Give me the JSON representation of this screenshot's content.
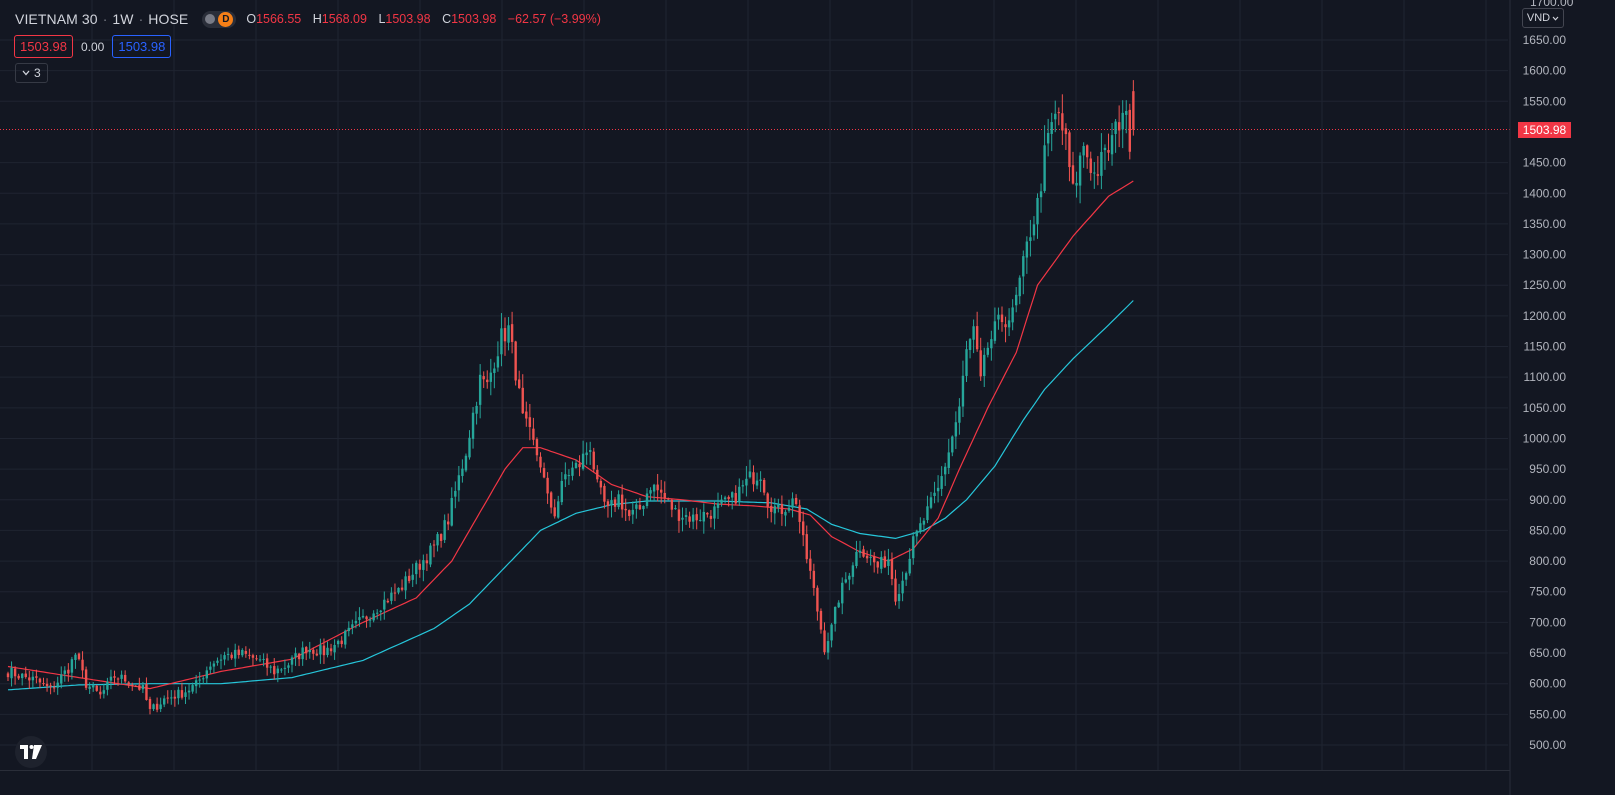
{
  "header": {
    "symbol": "VIETNAM 30",
    "interval": "1W",
    "exchange": "HOSE",
    "badge": "D",
    "ohlc": {
      "open_label": "O",
      "open": "1566.55",
      "high_label": "H",
      "high": "1568.09",
      "low_label": "L",
      "low": "1503.98",
      "close_label": "C",
      "close": "1503.98",
      "change": "−62.57 (−3.99%)"
    }
  },
  "quote": {
    "sell": "1503.98",
    "spread": "0.00",
    "buy": "1503.98"
  },
  "indicators_button": {
    "count": "3"
  },
  "price_scale": {
    "currency": "VND",
    "last_price": "1503.98",
    "top_partial_label": "1700.00",
    "ticks": [
      "1650.00",
      "1600.00",
      "1550.00",
      "1450.00",
      "1400.00",
      "1350.00",
      "1300.00",
      "1250.00",
      "1200.00",
      "1150.00",
      "1100.00",
      "1050.00",
      "1000.00",
      "950.00",
      "900.00",
      "850.00",
      "800.00",
      "750.00",
      "700.00",
      "650.00",
      "600.00",
      "550.00",
      "500.00"
    ]
  },
  "colors": {
    "background": "#131722",
    "up": "#26a69a",
    "down": "#ef5350",
    "ma_fast": "#f23645",
    "ma_slow": "#26c6da",
    "grid": "#1f2431"
  },
  "chart_data": {
    "type": "candlestick",
    "title": "",
    "ylim": [
      490,
      1705
    ],
    "last_price": 1503.98,
    "anchors_close": [
      [
        0,
        620
      ],
      [
        4,
        612
      ],
      [
        8,
        605
      ],
      [
        12,
        590
      ],
      [
        17,
        625
      ],
      [
        19,
        648
      ],
      [
        22,
        600
      ],
      [
        26,
        580
      ],
      [
        30,
        612
      ],
      [
        34,
        605
      ],
      [
        38,
        590
      ],
      [
        40,
        555
      ],
      [
        44,
        575
      ],
      [
        49,
        585
      ],
      [
        53,
        598
      ],
      [
        57,
        632
      ],
      [
        61,
        646
      ],
      [
        66,
        648
      ],
      [
        70,
        640
      ],
      [
        75,
        620
      ],
      [
        79,
        632
      ],
      [
        84,
        658
      ],
      [
        89,
        652
      ],
      [
        94,
        672
      ],
      [
        99,
        700
      ],
      [
        105,
        730
      ],
      [
        110,
        752
      ],
      [
        116,
        795
      ],
      [
        120,
        822
      ],
      [
        124,
        868
      ],
      [
        127,
        935
      ],
      [
        129,
        980
      ],
      [
        131,
        1040
      ],
      [
        133,
        1095
      ],
      [
        135,
        1085
      ],
      [
        137,
        1130
      ],
      [
        139,
        1165
      ],
      [
        141,
        1178
      ],
      [
        143,
        1110
      ],
      [
        145,
        1030
      ],
      [
        147,
        1005
      ],
      [
        150,
        960
      ],
      [
        152,
        900
      ],
      [
        154,
        880
      ],
      [
        157,
        940
      ],
      [
        161,
        958
      ],
      [
        164,
        990
      ],
      [
        166,
        920
      ],
      [
        169,
        880
      ],
      [
        172,
        905
      ],
      [
        175,
        872
      ],
      [
        178,
        885
      ],
      [
        181,
        925
      ],
      [
        184,
        910
      ],
      [
        188,
        880
      ],
      [
        193,
        870
      ],
      [
        199,
        882
      ],
      [
        204,
        900
      ],
      [
        209,
        935
      ],
      [
        212,
        945
      ],
      [
        214,
        900
      ],
      [
        217,
        880
      ],
      [
        220,
        895
      ],
      [
        222,
        900
      ],
      [
        224,
        830
      ],
      [
        226,
        780
      ],
      [
        228,
        720
      ],
      [
        230,
        660
      ],
      [
        232,
        690
      ],
      [
        234,
        740
      ],
      [
        236,
        770
      ],
      [
        238,
        800
      ],
      [
        240,
        825
      ],
      [
        242,
        810
      ],
      [
        245,
        790
      ],
      [
        248,
        805
      ],
      [
        250,
        745
      ],
      [
        252,
        770
      ],
      [
        255,
        830
      ],
      [
        259,
        880
      ],
      [
        262,
        915
      ],
      [
        265,
        980
      ],
      [
        268,
        1050
      ],
      [
        270,
        1140
      ],
      [
        272,
        1175
      ],
      [
        274,
        1090
      ],
      [
        276,
        1150
      ],
      [
        278,
        1175
      ],
      [
        280,
        1195
      ],
      [
        283,
        1200
      ],
      [
        286,
        1280
      ],
      [
        288,
        1340
      ],
      [
        290,
        1380
      ],
      [
        292,
        1460
      ],
      [
        294,
        1510
      ],
      [
        296,
        1530
      ],
      [
        298,
        1480
      ],
      [
        300,
        1400
      ],
      [
        303,
        1480
      ],
      [
        306,
        1430
      ],
      [
        309,
        1460
      ],
      [
        312,
        1500
      ],
      [
        314,
        1540
      ],
      [
        316,
        1490
      ],
      [
        317,
        1503.98
      ]
    ],
    "ma_fast_anchors": [
      [
        0,
        628
      ],
      [
        20,
        610
      ],
      [
        40,
        592
      ],
      [
        60,
        620
      ],
      [
        80,
        640
      ],
      [
        100,
        700
      ],
      [
        115,
        740
      ],
      [
        125,
        800
      ],
      [
        133,
        880
      ],
      [
        140,
        950
      ],
      [
        145,
        985
      ],
      [
        150,
        985
      ],
      [
        160,
        965
      ],
      [
        170,
        925
      ],
      [
        180,
        905
      ],
      [
        190,
        900
      ],
      [
        200,
        893
      ],
      [
        210,
        890
      ],
      [
        220,
        885
      ],
      [
        226,
        875
      ],
      [
        232,
        840
      ],
      [
        240,
        815
      ],
      [
        248,
        800
      ],
      [
        255,
        820
      ],
      [
        262,
        870
      ],
      [
        268,
        950
      ],
      [
        276,
        1050
      ],
      [
        284,
        1140
      ],
      [
        290,
        1250
      ],
      [
        300,
        1330
      ],
      [
        310,
        1395
      ],
      [
        317,
        1420
      ]
    ],
    "ma_slow_anchors": [
      [
        0,
        590
      ],
      [
        20,
        598
      ],
      [
        40,
        600
      ],
      [
        60,
        600
      ],
      [
        80,
        610
      ],
      [
        100,
        638
      ],
      [
        120,
        690
      ],
      [
        130,
        730
      ],
      [
        140,
        790
      ],
      [
        150,
        850
      ],
      [
        160,
        878
      ],
      [
        170,
        892
      ],
      [
        180,
        898
      ],
      [
        200,
        898
      ],
      [
        215,
        895
      ],
      [
        225,
        885
      ],
      [
        232,
        860
      ],
      [
        240,
        845
      ],
      [
        250,
        837
      ],
      [
        258,
        850
      ],
      [
        264,
        870
      ],
      [
        270,
        900
      ],
      [
        278,
        955
      ],
      [
        286,
        1030
      ],
      [
        292,
        1080
      ],
      [
        300,
        1130
      ],
      [
        310,
        1185
      ],
      [
        317,
        1225
      ]
    ]
  }
}
